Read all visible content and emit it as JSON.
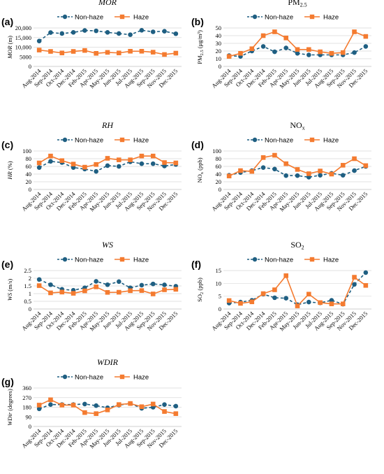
{
  "colors": {
    "nonhaze": "#1f5f82",
    "haze": "#f47b30"
  },
  "chart_data": [
    {
      "letter": "(a)",
      "type": "line",
      "title_main": "MOR",
      "title_sub": "",
      "title_italic": true,
      "ylabel_main": "MOR",
      "ylabel_sub": "",
      "ylabel_unit": " (m)",
      "ylabel_italic": true,
      "ylim": [
        0,
        20000
      ],
      "yticks": [
        0,
        5000,
        10000,
        15000,
        20000
      ],
      "yticklabels": [
        "0",
        "5000",
        "10,000",
        "15,000",
        "20,000"
      ],
      "categories": [
        "Aug-2014",
        "Sep-2014",
        "Oct-2014",
        "Dec-2014",
        "Feb-2015",
        "Apr-2015",
        "May-2015",
        "Jun-2015",
        "Jul-2015",
        "Aug-2015",
        "Sep-2015",
        "Nov-2015",
        "Dec-2015"
      ],
      "series": [
        {
          "name": "Non-haze",
          "values": [
            13200,
            17600,
            17100,
            17700,
            18700,
            18500,
            17700,
            17100,
            16500,
            18800,
            18000,
            18300,
            17000
          ]
        },
        {
          "name": "Haze",
          "values": [
            8500,
            7800,
            7000,
            7800,
            8300,
            6800,
            7300,
            7000,
            7900,
            7900,
            7400,
            6200,
            6900
          ]
        }
      ]
    },
    {
      "letter": "(b)",
      "type": "line",
      "title_main": "PM",
      "title_sub": "2.5",
      "title_italic": false,
      "ylabel_main": "PM",
      "ylabel_sub": "2.5",
      "ylabel_unit": " (μg/m³)",
      "ylabel_italic": false,
      "ylim": [
        0,
        50
      ],
      "yticks": [
        0,
        10,
        20,
        30,
        40,
        50
      ],
      "yticklabels": [
        "0",
        "10",
        "20",
        "30",
        "40",
        "50"
      ],
      "categories": [
        "Aug-2014",
        "Sep-2014",
        "Oct-2014",
        "Dec-2014",
        "Feb-2015",
        "Apr-2015",
        "May-2015",
        "Jun-2015",
        "Jul-2015",
        "Aug-2015",
        "Sep-2015",
        "Nov-2015",
        "Dec-2015"
      ],
      "series": [
        {
          "name": "Non-haze",
          "values": [
            14,
            13,
            20,
            26,
            19,
            24,
            17,
            15,
            15,
            15,
            15,
            18,
            26
          ]
        },
        {
          "name": "Haze",
          "values": [
            13,
            17,
            23,
            40,
            45,
            37,
            22,
            22,
            19,
            17,
            18,
            45,
            39
          ]
        }
      ]
    },
    {
      "letter": "(c)",
      "type": "line",
      "title_main": "RH",
      "title_sub": "",
      "title_italic": true,
      "ylabel_main": "HR",
      "ylabel_sub": "",
      "ylabel_unit": " (%)",
      "ylabel_italic": true,
      "ylim": [
        0,
        100
      ],
      "yticks": [
        0,
        20,
        40,
        60,
        80,
        100
      ],
      "yticklabels": [
        "0",
        "20",
        "40",
        "60",
        "80",
        "100"
      ],
      "categories": [
        "Aug-2014",
        "Sep-2014",
        "Oct-2014",
        "Dec-2014",
        "Feb-2015",
        "Apr-2015",
        "May-2015",
        "Jun-2015",
        "Jul-2015",
        "Aug-2015",
        "Sep-2015",
        "Nov-2015",
        "Dec-2015"
      ],
      "series": [
        {
          "name": "Non-haze",
          "values": [
            57,
            73,
            70,
            57,
            53,
            47,
            62,
            60,
            72,
            67,
            67,
            61,
            65
          ]
        },
        {
          "name": "Haze",
          "values": [
            69,
            87,
            75,
            66,
            58,
            65,
            81,
            77,
            77,
            87,
            87,
            70,
            69
          ]
        }
      ]
    },
    {
      "letter": "(d)",
      "type": "line",
      "title_main": "NO",
      "title_sub": "x",
      "title_italic": false,
      "ylabel_main": "NO",
      "ylabel_sub": "x",
      "ylabel_unit": " (ppb)",
      "ylabel_italic": false,
      "ylim": [
        0,
        100
      ],
      "yticks": [
        0,
        20,
        40,
        60,
        80,
        100
      ],
      "yticklabels": [
        "0",
        "20",
        "40",
        "60",
        "80",
        "100"
      ],
      "categories": [
        "Aug-2014",
        "Sep-2014",
        "Oct-2014",
        "Dec-2014",
        "Feb-2015",
        "Apr-2015",
        "May-2015",
        "Jun-2015",
        "Jul-2015",
        "Aug-2015",
        "Sep-2015",
        "Nov-2015",
        "Dec-2015"
      ],
      "series": [
        {
          "name": "Non-haze",
          "values": [
            37,
            44,
            49,
            57,
            53,
            36,
            36,
            32,
            37,
            42,
            37,
            49,
            60
          ]
        },
        {
          "name": "Haze",
          "values": [
            35,
            49,
            47,
            83,
            89,
            67,
            52,
            41,
            48,
            40,
            63,
            80,
            62
          ]
        }
      ]
    },
    {
      "letter": "(e)",
      "type": "line",
      "title_main": "WS",
      "title_sub": "",
      "title_italic": true,
      "ylabel_main": "WS",
      "ylabel_sub": "",
      "ylabel_unit": " (m/s)",
      "ylabel_italic": true,
      "ylim": [
        0,
        2.5
      ],
      "yticks": [
        0,
        0.5,
        1,
        1.5,
        2,
        2.5
      ],
      "yticklabels": [
        "0",
        "0.5",
        "1",
        "1.5",
        "2",
        "2.5"
      ],
      "categories": [
        "Aug-2014",
        "Sep-2014",
        "Oct-2014",
        "Dec-2014",
        "Feb-2015",
        "Apr-2015",
        "May-2015",
        "Jun-2015",
        "Jul-2015",
        "Aug-2015",
        "Sep-2015",
        "Nov-2015",
        "Dec-2015"
      ],
      "series": [
        {
          "name": "Non-haze",
          "values": [
            1.92,
            1.58,
            1.28,
            1.22,
            1.38,
            1.8,
            1.58,
            1.78,
            1.38,
            1.55,
            1.63,
            1.57,
            1.48
          ]
        },
        {
          "name": "Haze",
          "values": [
            1.52,
            1.05,
            1.1,
            1.02,
            1.18,
            1.44,
            1.08,
            1.09,
            1.19,
            1.2,
            0.98,
            1.25,
            1.28
          ]
        }
      ]
    },
    {
      "letter": "(f)",
      "type": "line",
      "title_main": "SO",
      "title_sub": "2",
      "title_italic": false,
      "ylabel_main": "SO",
      "ylabel_sub": "2",
      "ylabel_unit": " (ppb)",
      "ylabel_italic": false,
      "ylim": [
        0,
        15
      ],
      "yticks": [
        0,
        5,
        10,
        15
      ],
      "yticklabels": [
        "0",
        "5",
        "10",
        "15"
      ],
      "categories": [
        "Aug-2014",
        "Sep-2014",
        "Oct-2014",
        "Dec-2014",
        "Feb-2015",
        "Apr-2015",
        "May-2015",
        "Jun-2015",
        "Jul-2015",
        "Aug-2015",
        "Sep-2015",
        "Nov-2015",
        "Dec-2015"
      ],
      "series": [
        {
          "name": "Non-haze",
          "values": [
            2.3,
            2.7,
            3.4,
            5.8,
            4.4,
            4.2,
            1.7,
            2.7,
            2.4,
            3.4,
            1.9,
            9.6,
            14.2
          ]
        },
        {
          "name": "Haze",
          "values": [
            3.3,
            2.2,
            2.8,
            6.0,
            7.5,
            13.0,
            1.2,
            5.8,
            2.5,
            2.0,
            2.0,
            12.4,
            9.2
          ]
        }
      ]
    },
    {
      "letter": "(g)",
      "type": "line",
      "title_main": "WDIR",
      "title_sub": "",
      "title_italic": true,
      "ylabel_main": "WDir",
      "ylabel_sub": "",
      "ylabel_unit": " (degrees)",
      "ylabel_italic": true,
      "ylim": [
        0,
        360
      ],
      "yticks": [
        0,
        90,
        180,
        270,
        360
      ],
      "yticklabels": [
        "0",
        "90",
        "180",
        "270",
        "360"
      ],
      "categories": [
        "Aug-2014",
        "Sep-2014",
        "Oct-2014",
        "Dec-2014",
        "Feb-2015",
        "Apr-2015",
        "May-2015",
        "Jun-2015",
        "Jul-2015",
        "Aug-2015",
        "Sep-2015",
        "Nov-2015",
        "Dec-2015"
      ],
      "series": [
        {
          "name": "Non-haze",
          "values": [
            165,
            205,
            205,
            205,
            210,
            195,
            175,
            200,
            215,
            170,
            180,
            205,
            190
          ]
        },
        {
          "name": "Haze",
          "values": [
            200,
            250,
            200,
            200,
            130,
            120,
            155,
            205,
            215,
            185,
            210,
            140,
            120
          ]
        }
      ]
    }
  ]
}
